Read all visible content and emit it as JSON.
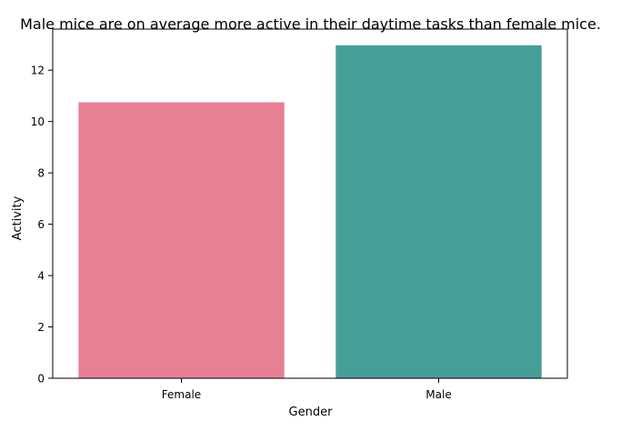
{
  "chart_data": {
    "type": "bar",
    "title": "Male mice are on average more active in their daytime tasks than female mice.",
    "xlabel": "Gender",
    "ylabel": "Activity",
    "categories": [
      "Female",
      "Male"
    ],
    "values": [
      10.75,
      12.97
    ],
    "colors": [
      "#e88093",
      "#469e98"
    ],
    "ylim": [
      0,
      13.6
    ],
    "yticks": [
      0,
      2,
      4,
      6,
      8,
      10,
      12
    ],
    "grid": false,
    "legend": false
  }
}
